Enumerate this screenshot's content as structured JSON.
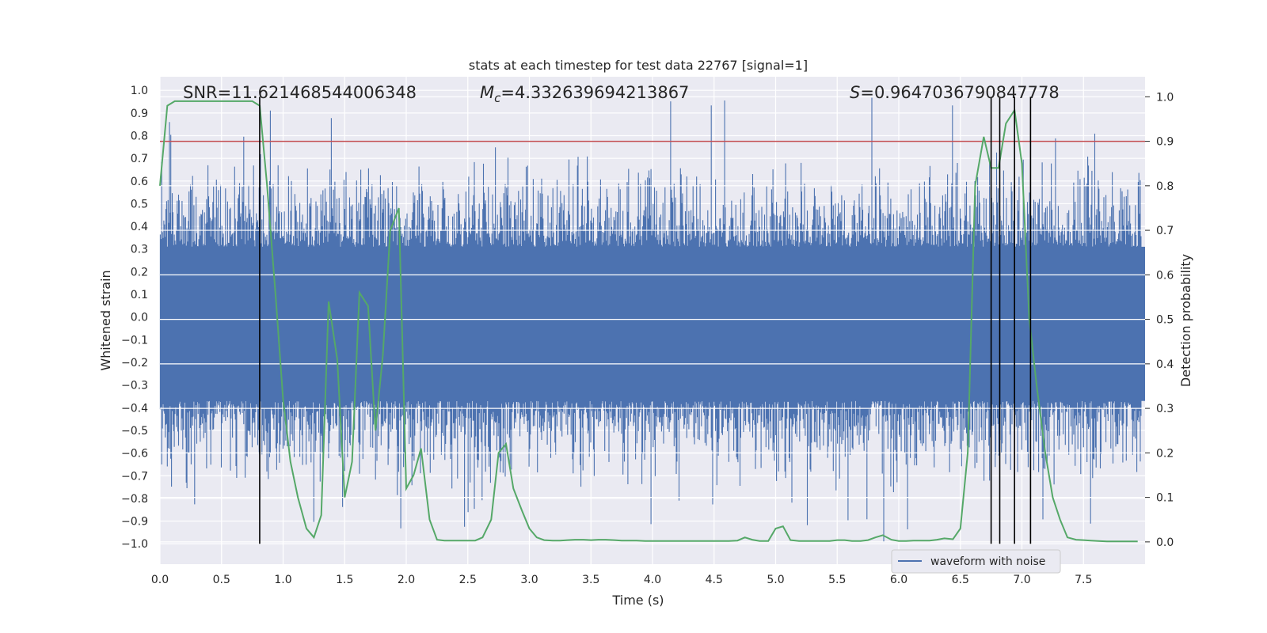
{
  "chart_data": {
    "type": "line",
    "title": "stats at each timestep for test data 22767 [signal=1]",
    "xlabel": "Time (s)",
    "ylabel_left": "Whitened strain",
    "ylabel_right": "Detection probability",
    "xlim": [
      0.0,
      8.0
    ],
    "ylim_left": [
      -1.09,
      1.06
    ],
    "ylim_right": [
      -0.05,
      1.045
    ],
    "x_ticks": [
      "0.0",
      "0.5",
      "1.0",
      "1.5",
      "2.0",
      "2.5",
      "3.0",
      "3.5",
      "4.0",
      "4.5",
      "5.0",
      "5.5",
      "6.0",
      "6.5",
      "7.0",
      "7.5"
    ],
    "y_left_ticks": [
      "1.0",
      "0.9",
      "0.8",
      "0.7",
      "0.6",
      "0.5",
      "0.4",
      "0.3",
      "0.2",
      "0.1",
      "0.0",
      "-0.1",
      "-0.2",
      "-0.3",
      "-0.4",
      "-0.5",
      "-0.6",
      "-0.7",
      "-0.8",
      "-0.9",
      "-1.0"
    ],
    "y_right_ticks": [
      "1.0",
      "0.9",
      "0.8",
      "0.7",
      "0.6",
      "0.5",
      "0.4",
      "0.3",
      "0.2",
      "0.1",
      "0.0"
    ],
    "grid": true,
    "annotations": {
      "snr": "SNR=11.621468544006348",
      "mc_symbol": "M",
      "mc_sub": "c",
      "mc_value": "=4.332639694213867",
      "s_symbol": "S",
      "s_value": "=0.9647036790847778"
    },
    "threshold": {
      "value": 0.9,
      "axis": "right",
      "color": "#c44e52"
    },
    "vertical_lines": {
      "x": [
        0.81,
        6.75,
        6.82,
        6.94,
        7.07
      ],
      "y_from": -1.0,
      "y_to_right_axis": 1.0,
      "color": "#000000"
    },
    "series": [
      {
        "name": "waveform with noise",
        "axis": "left",
        "color": "#4c72b0",
        "render": "dense-noise",
        "samples": 4096,
        "core_amplitude": 0.31,
        "max_peak": 0.97,
        "min_peak": -1.0
      },
      {
        "name": "detection probability",
        "axis": "right",
        "color": "#55a868",
        "x": [
          0.0,
          0.06,
          0.12,
          0.18,
          0.25,
          0.31,
          0.37,
          0.44,
          0.5,
          0.56,
          0.62,
          0.69,
          0.75,
          0.81,
          0.87,
          0.94,
          1.0,
          1.06,
          1.12,
          1.19,
          1.25,
          1.31,
          1.37,
          1.44,
          1.5,
          1.56,
          1.62,
          1.69,
          1.75,
          1.81,
          1.87,
          1.94,
          2.0,
          2.06,
          2.12,
          2.19,
          2.25,
          2.31,
          2.37,
          2.44,
          2.5,
          2.56,
          2.62,
          2.69,
          2.75,
          2.81,
          2.87,
          2.94,
          3.0,
          3.06,
          3.12,
          3.19,
          3.25,
          3.31,
          3.37,
          3.44,
          3.5,
          3.56,
          3.62,
          3.69,
          3.75,
          3.81,
          3.87,
          3.94,
          4.0,
          4.06,
          4.12,
          4.19,
          4.25,
          4.31,
          4.37,
          4.44,
          4.5,
          4.56,
          4.62,
          4.69,
          4.75,
          4.81,
          4.87,
          4.94,
          5.0,
          5.06,
          5.12,
          5.19,
          5.25,
          5.31,
          5.37,
          5.44,
          5.5,
          5.56,
          5.62,
          5.69,
          5.75,
          5.81,
          5.87,
          5.94,
          6.0,
          6.06,
          6.12,
          6.19,
          6.25,
          6.31,
          6.37,
          6.44,
          6.5,
          6.56,
          6.62,
          6.69,
          6.75,
          6.81,
          6.87,
          6.94,
          7.0,
          7.06,
          7.12,
          7.19,
          7.25,
          7.31,
          7.37,
          7.44,
          7.5,
          7.56,
          7.62,
          7.69,
          7.75,
          7.81,
          7.87,
          7.94
        ],
        "y": [
          0.8,
          0.98,
          0.99,
          0.99,
          0.99,
          0.99,
          0.99,
          0.99,
          0.99,
          0.99,
          0.99,
          0.99,
          0.99,
          0.98,
          0.8,
          0.55,
          0.32,
          0.18,
          0.1,
          0.03,
          0.01,
          0.06,
          0.54,
          0.41,
          0.1,
          0.18,
          0.56,
          0.53,
          0.25,
          0.42,
          0.7,
          0.75,
          0.12,
          0.15,
          0.21,
          0.05,
          0.005,
          0.003,
          0.003,
          0.003,
          0.003,
          0.003,
          0.01,
          0.05,
          0.2,
          0.22,
          0.12,
          0.07,
          0.03,
          0.01,
          0.004,
          0.003,
          0.003,
          0.004,
          0.005,
          0.005,
          0.004,
          0.005,
          0.005,
          0.004,
          0.003,
          0.003,
          0.003,
          0.002,
          0.002,
          0.002,
          0.002,
          0.002,
          0.002,
          0.002,
          0.002,
          0.002,
          0.002,
          0.002,
          0.002,
          0.003,
          0.01,
          0.005,
          0.002,
          0.002,
          0.03,
          0.035,
          0.004,
          0.002,
          0.002,
          0.002,
          0.002,
          0.002,
          0.004,
          0.004,
          0.002,
          0.002,
          0.004,
          0.01,
          0.015,
          0.005,
          0.002,
          0.002,
          0.003,
          0.003,
          0.003,
          0.005,
          0.008,
          0.006,
          0.03,
          0.2,
          0.8,
          0.91,
          0.84,
          0.84,
          0.94,
          0.97,
          0.85,
          0.5,
          0.35,
          0.2,
          0.1,
          0.05,
          0.01,
          0.005,
          0.004,
          0.003,
          0.002,
          0.001,
          0.001,
          0.001,
          0.001,
          0.001
        ]
      }
    ],
    "legend": {
      "position": "lower-right",
      "entries": [
        "waveform with noise"
      ]
    }
  }
}
